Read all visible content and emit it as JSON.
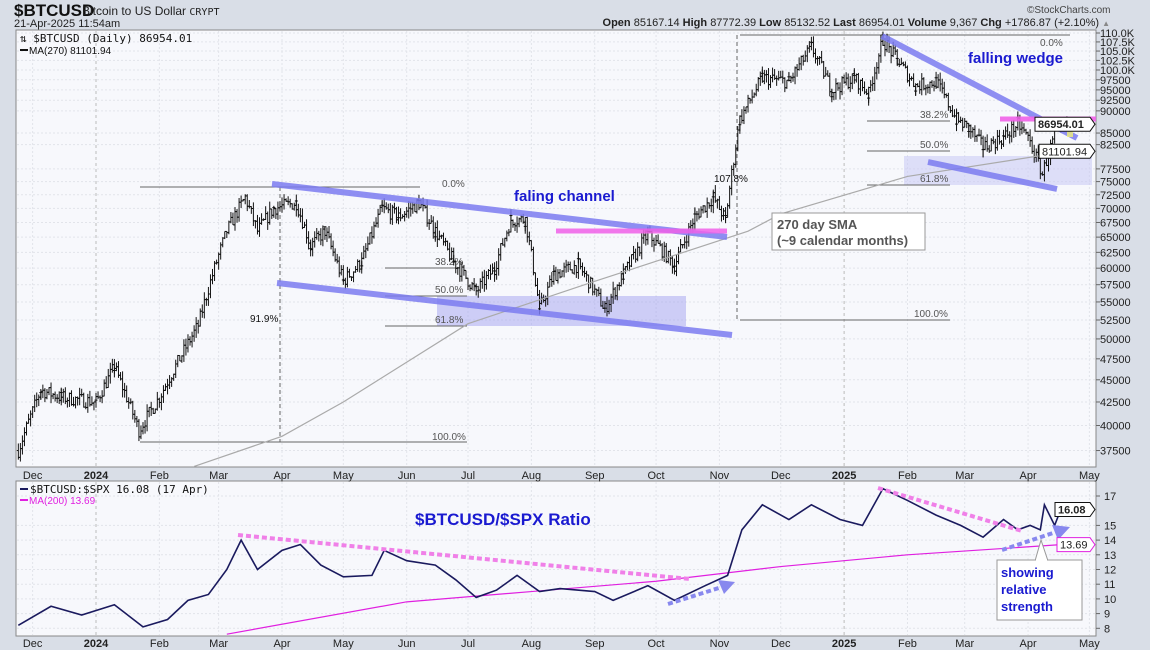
{
  "header": {
    "symbol": "$BTCUSD",
    "name": "Bitcoin to US Dollar",
    "exchange": "CRYPT",
    "datetime": "21-Apr-2025 11:54am",
    "copyright": "©StockCharts.com",
    "open_label": "Open",
    "open": "85167.14",
    "high_label": "High",
    "high": "87772.39",
    "low_label": "Low",
    "low": "85132.52",
    "last_label": "Last",
    "last": "86954.01",
    "volume_label": "Volume",
    "volume": "9,367",
    "chg_label": "Chg",
    "chg": "+1786.87 (+2.10%)"
  },
  "colors": {
    "price": "#111111",
    "ma270": "#aaaaaa",
    "ratio": "#1a1a5e",
    "ma200": "#e020e0",
    "trendline": "#7b7bf0",
    "resistance": "#f060e8",
    "annotation": "#1a1ad0",
    "panel_bg": "#f7f8fc"
  },
  "chart_data": [
    {
      "type": "ohlc-bar",
      "title": "$BTCUSD (Daily) 86954.01",
      "legend": [
        "$BTCUSD (Daily) 86954.01",
        "MA(270) 81101.94"
      ],
      "yscale": "log",
      "ylim": [
        37000,
        111000
      ],
      "y_ticks": [
        "110.0K",
        "107.5K",
        "105.0K",
        "102.5K",
        "100.0K",
        "97500",
        "95000",
        "92500",
        "90000",
        "85000",
        "82500",
        "77500",
        "75000",
        "72500",
        "70000",
        "67500",
        "65000",
        "62500",
        "60000",
        "57500",
        "55000",
        "52500",
        "50000",
        "47500",
        "45000",
        "42500",
        "40000",
        "37500"
      ],
      "x_ticks": [
        "Dec",
        "2024",
        "Feb",
        "Mar",
        "Apr",
        "May",
        "Jun",
        "Jul",
        "Aug",
        "Sep",
        "Oct",
        "Nov",
        "Dec",
        "2025",
        "Feb",
        "Mar",
        "Apr",
        "May"
      ],
      "last_price_label": "86954.01",
      "ma_label": "81101.94",
      "closes": [
        [
          "2023-11-24",
          37500
        ],
        [
          "2023-12-05",
          43800
        ],
        [
          "2023-12-15",
          43000
        ],
        [
          "2024-01-01",
          42500
        ],
        [
          "2024-01-10",
          46500
        ],
        [
          "2024-01-22",
          39500
        ],
        [
          "2024-02-01",
          43000
        ],
        [
          "2024-02-12",
          48000
        ],
        [
          "2024-02-20",
          51800
        ],
        [
          "2024-02-28",
          60000
        ],
        [
          "2024-03-05",
          66000
        ],
        [
          "2024-03-14",
          72000
        ],
        [
          "2024-03-20",
          66000
        ],
        [
          "2024-03-28",
          70000
        ],
        [
          "2024-04-08",
          71000
        ],
        [
          "2024-04-15",
          63500
        ],
        [
          "2024-04-22",
          66000
        ],
        [
          "2024-05-01",
          58000
        ],
        [
          "2024-05-10",
          61000
        ],
        [
          "2024-05-20",
          70000
        ],
        [
          "2024-05-28",
          68500
        ],
        [
          "2024-06-07",
          71000
        ],
        [
          "2024-06-15",
          66000
        ],
        [
          "2024-06-24",
          61000
        ],
        [
          "2024-07-05",
          56500
        ],
        [
          "2024-07-14",
          60000
        ],
        [
          "2024-07-22",
          68000
        ],
        [
          "2024-07-29",
          68000
        ],
        [
          "2024-08-05",
          54000
        ],
        [
          "2024-08-12",
          59000
        ],
        [
          "2024-08-24",
          60500
        ],
        [
          "2024-09-06",
          54000
        ],
        [
          "2024-09-15",
          59000
        ],
        [
          "2024-09-27",
          65500
        ],
        [
          "2024-10-10",
          60500
        ],
        [
          "2024-10-20",
          68500
        ],
        [
          "2024-10-29",
          72000
        ],
        [
          "2024-11-04",
          68000
        ],
        [
          "2024-11-11",
          88000
        ],
        [
          "2024-11-22",
          98000
        ],
        [
          "2024-12-05",
          97000
        ],
        [
          "2024-12-16",
          106000
        ],
        [
          "2024-12-26",
          95000
        ],
        [
          "2025-01-06",
          98000
        ],
        [
          "2025-01-13",
          94000
        ],
        [
          "2025-01-20",
          108000
        ],
        [
          "2025-01-27",
          102500
        ],
        [
          "2025-02-05",
          96000
        ],
        [
          "2025-02-15",
          97000
        ],
        [
          "2025-02-25",
          88000
        ],
        [
          "2025-03-03",
          86000
        ],
        [
          "2025-03-10",
          82000
        ],
        [
          "2025-03-20",
          84000
        ],
        [
          "2025-03-27",
          87000
        ],
        [
          "2025-04-01",
          84000
        ],
        [
          "2025-04-08",
          76500
        ],
        [
          "2025-04-14",
          84500
        ],
        [
          "2025-04-21",
          86954.01
        ]
      ],
      "ma270": [
        [
          "2024-02-18",
          36000
        ],
        [
          "2024-04-01",
          38900
        ],
        [
          "2024-05-01",
          42500
        ],
        [
          "2024-07-01",
          52000
        ],
        [
          "2024-09-01",
          58000
        ],
        [
          "2024-11-15",
          66000
        ],
        [
          "2024-12-01",
          69000
        ],
        [
          "2025-02-01",
          76000
        ],
        [
          "2025-04-21",
          81101.94
        ]
      ],
      "annotations": {
        "fib1": {
          "top": "0.0%",
          "l382": "38.2%",
          "l50": "50.0%",
          "l618": "61.8%",
          "bottom": "100.0%",
          "move": "91.9%"
        },
        "fib2": {
          "top": "0.0%",
          "l382": "38.2%",
          "l50": "50.0%",
          "l618": "61.8%",
          "bottom": "100.0%",
          "move": "107.8%"
        },
        "channel": "faling channel",
        "wedge": "falling wedge",
        "sma_note_1": "270 day SMA",
        "sma_note_2": "(~9 calendar months)"
      }
    },
    {
      "type": "line",
      "legend": [
        "$BTCUSD:$SPX 16.08 (17 Apr)",
        "MA(200) 13.69"
      ],
      "ylim": [
        8,
        17.8
      ],
      "y_ticks": [
        17,
        15,
        14,
        13,
        12,
        11,
        10,
        9,
        8
      ],
      "last_label": "16.08",
      "ma_label": "13.69",
      "ratio": [
        [
          "2023-11-24",
          8.2
        ],
        [
          "2023-12-10",
          9.5
        ],
        [
          "2023-12-25",
          8.9
        ],
        [
          "2024-01-10",
          9.6
        ],
        [
          "2024-01-24",
          8.1
        ],
        [
          "2024-02-05",
          8.6
        ],
        [
          "2024-02-15",
          9.9
        ],
        [
          "2024-02-25",
          10.3
        ],
        [
          "2024-03-05",
          12.0
        ],
        [
          "2024-03-12",
          14.0
        ],
        [
          "2024-03-20",
          12.0
        ],
        [
          "2024-04-01",
          13.3
        ],
        [
          "2024-04-10",
          13.7
        ],
        [
          "2024-04-20",
          12.3
        ],
        [
          "2024-05-01",
          11.5
        ],
        [
          "2024-05-15",
          11.6
        ],
        [
          "2024-05-21",
          13.3
        ],
        [
          "2024-06-01",
          12.6
        ],
        [
          "2024-06-15",
          12.3
        ],
        [
          "2024-06-25",
          11.3
        ],
        [
          "2024-07-05",
          10.1
        ],
        [
          "2024-07-15",
          10.6
        ],
        [
          "2024-07-25",
          11.6
        ],
        [
          "2024-08-05",
          10.5
        ],
        [
          "2024-08-15",
          10.7
        ],
        [
          "2024-09-01",
          10.5
        ],
        [
          "2024-09-10",
          9.9
        ],
        [
          "2024-09-27",
          10.9
        ],
        [
          "2024-10-10",
          9.9
        ],
        [
          "2024-10-25",
          10.9
        ],
        [
          "2024-11-05",
          11.6
        ],
        [
          "2024-11-12",
          14.7
        ],
        [
          "2024-11-22",
          16.4
        ],
        [
          "2024-12-05",
          15.4
        ],
        [
          "2024-12-16",
          16.4
        ],
        [
          "2024-12-30",
          15.4
        ],
        [
          "2025-01-10",
          15.0
        ],
        [
          "2025-01-20",
          17.5
        ],
        [
          "2025-02-01",
          16.7
        ],
        [
          "2025-02-15",
          15.7
        ],
        [
          "2025-02-27",
          15.0
        ],
        [
          "2025-03-10",
          14.2
        ],
        [
          "2025-03-20",
          15.4
        ],
        [
          "2025-03-27",
          14.7
        ],
        [
          "2025-04-02",
          15.0
        ],
        [
          "2025-04-07",
          14.7
        ],
        [
          "2025-04-09",
          16.4
        ],
        [
          "2025-04-14",
          15.0
        ],
        [
          "2025-04-17",
          16.08
        ]
      ],
      "ma200": [
        [
          "2024-03-05",
          7.6
        ],
        [
          "2024-06-01",
          9.8
        ],
        [
          "2024-08-01",
          10.5
        ],
        [
          "2024-10-01",
          11.2
        ],
        [
          "2024-12-01",
          12.2
        ],
        [
          "2025-02-01",
          13.0
        ],
        [
          "2025-04-17",
          13.69
        ]
      ],
      "annotations": {
        "title": "$BTCUSD/$SPX Ratio",
        "note": [
          "showing",
          "relative",
          "strength"
        ]
      }
    }
  ]
}
